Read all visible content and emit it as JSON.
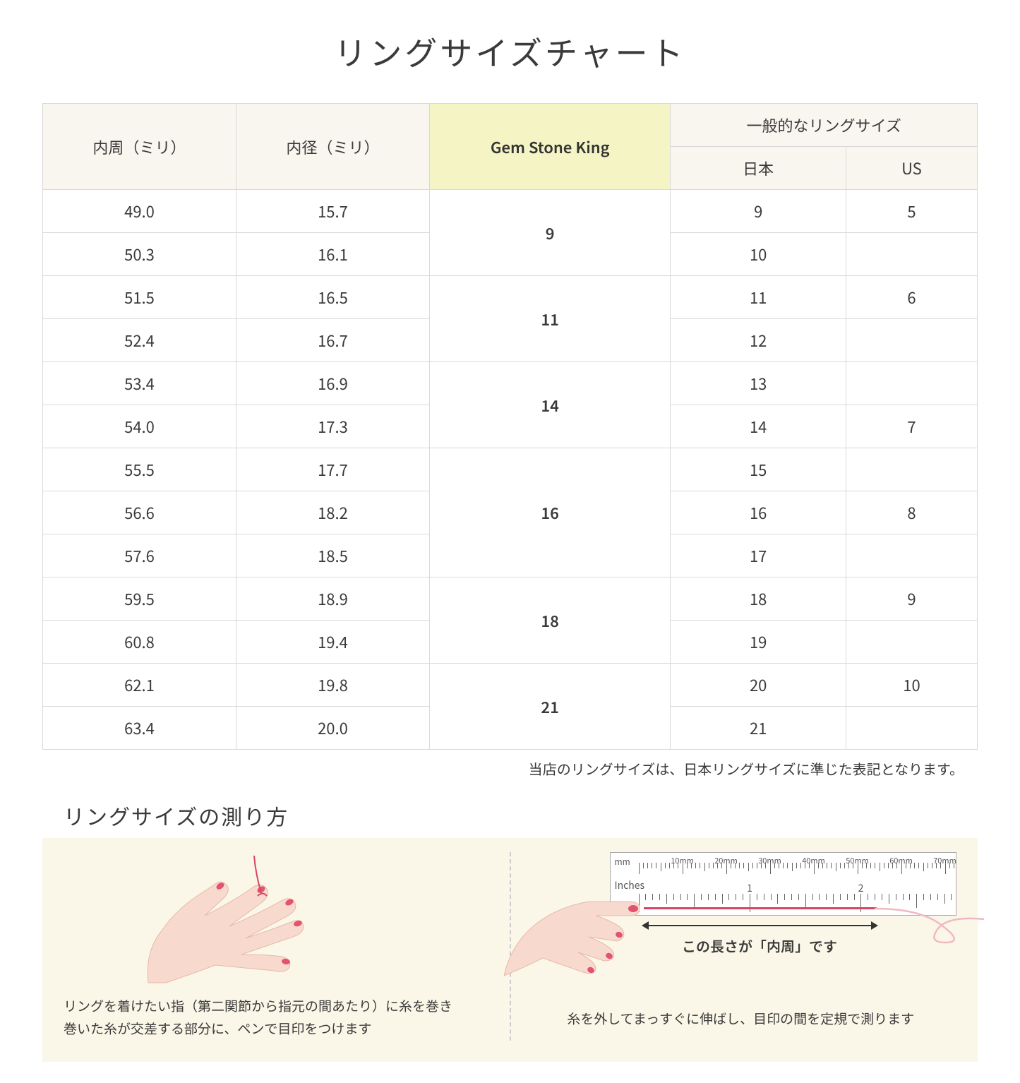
{
  "title": "リングサイズチャート",
  "headers": {
    "circumference": "内周（ミリ）",
    "diameter": "内径（ミリ）",
    "gsk": "Gem Stone King",
    "common": "一般的なリングサイズ",
    "jp": "日本",
    "us": "US"
  },
  "groups": [
    {
      "gsk": "9",
      "rows": [
        {
          "c": "49.0",
          "d": "15.7",
          "jp": "9",
          "us": "5"
        },
        {
          "c": "50.3",
          "d": "16.1",
          "jp": "10",
          "us": ""
        }
      ]
    },
    {
      "gsk": "11",
      "rows": [
        {
          "c": "51.5",
          "d": "16.5",
          "jp": "11",
          "us": "6"
        },
        {
          "c": "52.4",
          "d": "16.7",
          "jp": "12",
          "us": ""
        }
      ]
    },
    {
      "gsk": "14",
      "rows": [
        {
          "c": "53.4",
          "d": "16.9",
          "jp": "13",
          "us": ""
        },
        {
          "c": "54.0",
          "d": "17.3",
          "jp": "14",
          "us": "7"
        }
      ]
    },
    {
      "gsk": "16",
      "rows": [
        {
          "c": "55.5",
          "d": "17.7",
          "jp": "15",
          "us": ""
        },
        {
          "c": "56.6",
          "d": "18.2",
          "jp": "16",
          "us": "8"
        },
        {
          "c": "57.6",
          "d": "18.5",
          "jp": "17",
          "us": ""
        }
      ]
    },
    {
      "gsk": "18",
      "rows": [
        {
          "c": "59.5",
          "d": "18.9",
          "jp": "18",
          "us": "9"
        },
        {
          "c": "60.8",
          "d": "19.4",
          "jp": "19",
          "us": ""
        }
      ]
    },
    {
      "gsk": "21",
      "rows": [
        {
          "c": "62.1",
          "d": "19.8",
          "jp": "20",
          "us": "10"
        },
        {
          "c": "63.4",
          "d": "20.0",
          "jp": "21",
          "us": ""
        }
      ]
    }
  ],
  "note": "当店のリングサイズは、日本リングサイズに準じた表記となります。",
  "subtitle": "リングサイズの測り方",
  "howto": {
    "left": "リングを着けたい指（第二関節から指元の間あたり）に糸を巻き\n巻いた糸が交差する部分に、ペンで目印をつけます",
    "right": "糸を外してまっすぐに伸ばし、目印の間を定規で測ります",
    "measure_label": "この長さが「内周」です"
  },
  "ruler": {
    "mm_label": "mm",
    "in_label": "Inches",
    "mm_marks": [
      "10mm",
      "20mm",
      "30mm",
      "40mm",
      "50mm",
      "60mm",
      "70mm"
    ],
    "in_marks": [
      "1",
      "2"
    ]
  },
  "colors": {
    "header_bg": "#f8f6ef",
    "gsk_bg": "#f4f4c4",
    "howto_bg": "#fbf7e8",
    "skin": "#f7d9ce",
    "nail": "#e2536f",
    "thread": "#d94560",
    "border": "#d9d9d9"
  }
}
